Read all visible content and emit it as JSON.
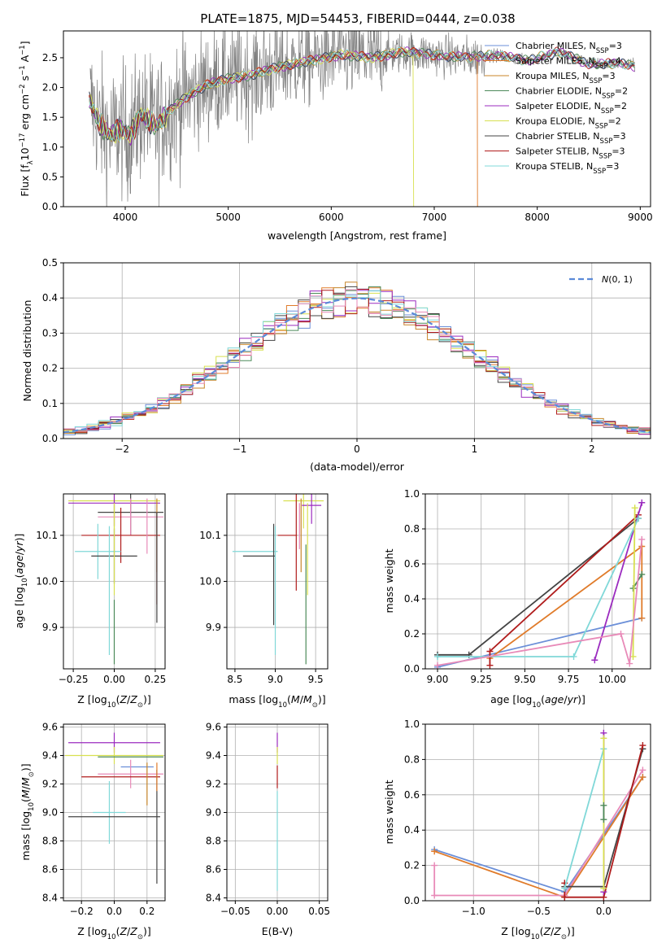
{
  "title": "PLATE=1875, MJD=54453, FIBERID=0444, z=0.038",
  "colors": {
    "Chabrier MILES": "#6b8fd8",
    "Salpeter MILES": "#e07b2a",
    "Kroupa MILES": "#c8862a",
    "Chabrier ELODIE": "#4d8a5a",
    "Salpeter ELODIE": "#9b2bbf",
    "Kroupa ELODIE": "#d8e050",
    "Chabrier STELIB": "#444444",
    "Salpeter STELIB": "#b01c1c",
    "Kroupa STELIB": "#80d8d8",
    "extra": "#e88ab8"
  },
  "chart_data": [
    {
      "id": "spectrum",
      "type": "line",
      "xlabel": "wavelength [Angstrom, rest frame]",
      "ylabel": "Flux [f_λ10^-17 erg cm^-2 s^-1 A^-1]",
      "xlim": [
        3400,
        9100
      ],
      "ylim": [
        0,
        2.95
      ],
      "xticks": [
        4000,
        5000,
        6000,
        7000,
        8000,
        9000
      ],
      "yticks": [
        0.0,
        0.5,
        1.0,
        1.5,
        2.0,
        2.5
      ],
      "legend_position": "upper-right",
      "legend": [
        {
          "name": "Chabrier MILES, N_SSP=3",
          "color_key": "Chabrier MILES"
        },
        {
          "name": "Salpeter MILES, N_SSP=4",
          "color_key": "Salpeter MILES"
        },
        {
          "name": "Kroupa MILES, N_SSP=3",
          "color_key": "Kroupa MILES"
        },
        {
          "name": "Chabrier ELODIE, N_SSP=2",
          "color_key": "Chabrier ELODIE"
        },
        {
          "name": "Salpeter ELODIE, N_SSP=2",
          "color_key": "Salpeter ELODIE"
        },
        {
          "name": "Kroupa ELODIE, N_SSP=2",
          "color_key": "Kroupa ELODIE"
        },
        {
          "name": "Chabrier STELIB, N_SSP=3",
          "color_key": "Chabrier STELIB"
        },
        {
          "name": "Salpeter STELIB, N_SSP=3",
          "color_key": "Salpeter STELIB"
        },
        {
          "name": "Kroupa STELIB, N_SSP=3",
          "color_key": "Kroupa STELIB"
        }
      ],
      "model_points": [
        [
          3650,
          1.8
        ],
        [
          3750,
          1.4
        ],
        [
          3850,
          1.2
        ],
        [
          3950,
          1.3
        ],
        [
          4050,
          1.2
        ],
        [
          4150,
          1.55
        ],
        [
          4300,
          1.35
        ],
        [
          4450,
          1.65
        ],
        [
          4600,
          1.85
        ],
        [
          4800,
          2.05
        ],
        [
          5000,
          2.15
        ],
        [
          5200,
          2.2
        ],
        [
          5500,
          2.35
        ],
        [
          5800,
          2.45
        ],
        [
          6100,
          2.55
        ],
        [
          6400,
          2.5
        ],
        [
          6700,
          2.6
        ],
        [
          7000,
          2.55
        ],
        [
          7300,
          2.5
        ],
        [
          7600,
          2.55
        ],
        [
          7900,
          2.45
        ],
        [
          8200,
          2.6
        ],
        [
          8500,
          2.4
        ],
        [
          8800,
          2.4
        ],
        [
          9000,
          2.35
        ]
      ]
    },
    {
      "id": "histogram",
      "type": "bar",
      "xlabel": "(data-model)/error",
      "ylabel": "Normed distribution",
      "xlim": [
        -2.5,
        2.5
      ],
      "ylim": [
        0,
        0.5
      ],
      "xticks": [
        -2,
        -1,
        0,
        1,
        2
      ],
      "yticks": [
        0.0,
        0.1,
        0.2,
        0.3,
        0.4,
        0.5
      ],
      "legend_position": "upper-right",
      "reference_label": "N(0,1)",
      "bin_width": 0.1
    },
    {
      "id": "age-vs-Z",
      "type": "scatter",
      "xlabel": "Z [log10(Z/Z⊙)]",
      "ylabel": "age [log10(age/yr)]",
      "xlim": [
        -0.31,
        0.31
      ],
      "ylim": [
        9.81,
        10.19
      ],
      "xticks": [
        -0.25,
        0.0,
        0.25
      ],
      "yticks": [
        9.9,
        10.0,
        10.1
      ],
      "points": [
        {
          "key": "Kroupa ELODIE",
          "x": 0.0,
          "y": 10.175,
          "xerr": 0.28,
          "yerr": 0.06
        },
        {
          "key": "Salpeter ELODIE",
          "x": 0.0,
          "y": 10.17,
          "xerr": 0.28,
          "yerr": 0.05
        },
        {
          "key": "Chabrier STELIB",
          "x": 0.1,
          "y": 10.15,
          "xerr": 0.2,
          "yerr": 0.05
        },
        {
          "key": "extra",
          "x": 0.1,
          "y": 10.14,
          "xerr": 0.2,
          "yerr": 0.04
        },
        {
          "key": "Salpeter STELIB",
          "x": 0.04,
          "y": 10.1,
          "xerr": 0.24,
          "yerr": 0.06
        },
        {
          "key": "Kroupa STELIB",
          "x": -0.1,
          "y": 10.065,
          "xerr": 0.14,
          "yerr": 0.06
        },
        {
          "key": "Chabrier STELIB",
          "x": 0.0,
          "y": 10.055,
          "xerr": 0.14,
          "yerr": 0.06
        },
        {
          "key": "Chabrier ELODIE",
          "x": 0.0,
          "y": 9.89,
          "xerr": 0.0,
          "yerr": 0.07
        },
        {
          "key": "Kroupa STELIB",
          "x": -0.03,
          "y": 9.98,
          "xerr": 0.0,
          "yerr": 0.14
        },
        {
          "key": "Kroupa MILES",
          "x": 0.26,
          "y": 10.1,
          "xerr": 0.0,
          "yerr": 0.08
        },
        {
          "key": "Salpeter STELIB",
          "x": 0.26,
          "y": 10.05,
          "xerr": 0.0,
          "yerr": 0.1
        },
        {
          "key": "Chabrier STELIB",
          "x": 0.26,
          "y": 10.03,
          "xerr": 0.0,
          "yerr": 0.12
        },
        {
          "key": "extra",
          "x": 0.2,
          "y": 10.12,
          "xerr": 0.0,
          "yerr": 0.06
        },
        {
          "key": "Kroupa ELODIE",
          "x": 0.0,
          "y": 10.07,
          "xerr": 0.0,
          "yerr": 0.1
        }
      ]
    },
    {
      "id": "age-vs-mass",
      "type": "scatter",
      "xlabel": "mass [log10(M/M⊙)]",
      "ylabel": "",
      "xlim": [
        8.4,
        9.65
      ],
      "ylim": [
        9.81,
        10.19
      ],
      "xticks": [
        8.5,
        9.0,
        9.5
      ],
      "yticks": [
        9.9,
        10.0,
        10.1
      ],
      "points": [
        {
          "key": "Kroupa ELODIE",
          "x": 9.35,
          "y": 10.175,
          "xerr": 0.25,
          "yerr": 0.06
        },
        {
          "key": "Salpeter ELODIE",
          "x": 9.45,
          "y": 10.165,
          "xerr": 0.12,
          "yerr": 0.04
        },
        {
          "key": "Salpeter STELIB",
          "x": 9.26,
          "y": 10.1,
          "xerr": 0.0,
          "yerr": 0.12
        },
        {
          "key": "Salpeter STELIB",
          "x": 9.15,
          "y": 10.1,
          "xerr": 0.12,
          "yerr": 0.0
        },
        {
          "key": "Kroupa STELIB",
          "x": 8.75,
          "y": 10.065,
          "xerr": 0.28,
          "yerr": 0.0
        },
        {
          "key": "Chabrier STELIB",
          "x": 8.8,
          "y": 10.055,
          "xerr": 0.2,
          "yerr": 0.0
        },
        {
          "key": "Chabrier STELIB",
          "x": 8.98,
          "y": 10.015,
          "xerr": 0.0,
          "yerr": 0.11
        },
        {
          "key": "Kroupa STELIB",
          "x": 9.0,
          "y": 9.98,
          "xerr": 0.0,
          "yerr": 0.14
        },
        {
          "key": "Kroupa ELODIE",
          "x": 9.4,
          "y": 10.07,
          "xerr": 0.0,
          "yerr": 0.1
        },
        {
          "key": "Chabrier ELODIE",
          "x": 9.38,
          "y": 9.95,
          "xerr": 0.0,
          "yerr": 0.13
        },
        {
          "key": "Kroupa MILES",
          "x": 9.32,
          "y": 10.1,
          "xerr": 0.0,
          "yerr": 0.08
        },
        {
          "key": "extra",
          "x": 9.3,
          "y": 10.12,
          "xerr": 0.0,
          "yerr": 0.05
        }
      ]
    },
    {
      "id": "massweight-vs-age",
      "type": "line",
      "xlabel": "age [log10(age/yr)]",
      "ylabel": "mass weight",
      "xlim": [
        8.93,
        10.22
      ],
      "ylim": [
        0.0,
        1.0
      ],
      "xticks": [
        9.0,
        9.25,
        9.5,
        9.75,
        10.0
      ],
      "yticks": [
        0.0,
        0.2,
        0.4,
        0.6,
        0.8,
        1.0
      ],
      "series": [
        {
          "key": "Chabrier MILES",
          "x": [
            9.0,
            10.17
          ],
          "y": [
            0.01,
            0.29
          ]
        },
        {
          "key": "Salpeter MILES",
          "x": [
            9.3,
            10.17,
            10.17
          ],
          "y": [
            0.06,
            0.7,
            0.29
          ]
        },
        {
          "key": "Chabrier STELIB",
          "x": [
            9.0,
            9.18,
            10.15
          ],
          "y": [
            0.08,
            0.08,
            0.86
          ]
        },
        {
          "key": "Salpeter STELIB",
          "x": [
            9.3,
            9.3,
            10.15
          ],
          "y": [
            0.02,
            0.1,
            0.88
          ]
        },
        {
          "key": "Salpeter ELODIE",
          "x": [
            9.9,
            10.17
          ],
          "y": [
            0.05,
            0.95
          ]
        },
        {
          "key": "Kroupa STELIB",
          "x": [
            9.0,
            9.78,
            10.15
          ],
          "y": [
            0.07,
            0.07,
            0.86
          ]
        },
        {
          "key": "Chabrier ELODIE",
          "x": [
            10.12,
            10.17
          ],
          "y": [
            0.46,
            0.54
          ]
        },
        {
          "key": "Kroupa ELODIE",
          "x": [
            10.12,
            10.13
          ],
          "y": [
            0.07,
            0.92
          ]
        },
        {
          "key": "extra",
          "x": [
            9.0,
            10.05,
            10.1,
            10.17
          ],
          "y": [
            0.02,
            0.2,
            0.03,
            0.74
          ]
        }
      ]
    },
    {
      "id": "mass-vs-Z",
      "type": "scatter",
      "xlabel": "Z [log10(Z/Z⊙)]",
      "ylabel": "mass [log10(M/M⊙)]",
      "xlim": [
        -0.31,
        0.31
      ],
      "ylim": [
        8.38,
        9.62
      ],
      "xticks": [
        -0.2,
        0.0,
        0.2
      ],
      "yticks": [
        8.4,
        8.6,
        8.8,
        9.0,
        9.2,
        9.4,
        9.6
      ],
      "points": [
        {
          "key": "Salpeter ELODIE",
          "x": 0.0,
          "y": 9.49,
          "xerr": 0.28,
          "yerr": 0.07
        },
        {
          "key": "Kroupa ELODIE",
          "x": 0.0,
          "y": 9.4,
          "xerr": 0.3,
          "yerr": 0.06
        },
        {
          "key": "Chabrier ELODIE",
          "x": 0.1,
          "y": 9.39,
          "xerr": 0.2,
          "yerr": 0.0
        },
        {
          "key": "Chabrier MILES",
          "x": 0.14,
          "y": 9.32,
          "xerr": 0.1,
          "yerr": 0.0
        },
        {
          "key": "extra",
          "x": 0.1,
          "y": 9.27,
          "xerr": 0.2,
          "yerr": 0.1
        },
        {
          "key": "Salpeter STELIB",
          "x": 0.04,
          "y": 9.25,
          "xerr": 0.24,
          "yerr": 0.0
        },
        {
          "key": "Kroupa STELIB",
          "x": -0.03,
          "y": 9.0,
          "xerr": 0.1,
          "yerr": 0.22
        },
        {
          "key": "Chabrier STELIB",
          "x": 0.0,
          "y": 8.97,
          "xerr": 0.28,
          "yerr": 0.0
        },
        {
          "key": "Chabrier STELIB",
          "x": 0.26,
          "y": 8.9,
          "xerr": 0.0,
          "yerr": 0.4
        },
        {
          "key": "Salpeter MILES",
          "x": 0.26,
          "y": 9.25,
          "xerr": 0.0,
          "yerr": 0.1
        },
        {
          "key": "Kroupa MILES",
          "x": 0.2,
          "y": 9.2,
          "xerr": 0.0,
          "yerr": 0.15
        }
      ]
    },
    {
      "id": "mass-vs-EBV",
      "type": "scatter",
      "xlabel": "E(B-V)",
      "ylabel": "",
      "xlim": [
        -0.06,
        0.06
      ],
      "ylim": [
        8.38,
        9.62
      ],
      "xticks": [
        -0.05,
        0.0,
        0.05
      ],
      "yticks": [
        8.4,
        8.6,
        8.8,
        9.0,
        9.2,
        9.4,
        9.6
      ],
      "points": [
        {
          "key": "Salpeter ELODIE",
          "x": 0.0,
          "y": 9.49,
          "xerr": 0.0,
          "yerr": 0.07
        },
        {
          "key": "Kroupa ELODIE",
          "x": 0.0,
          "y": 9.4,
          "xerr": 0.0,
          "yerr": 0.06
        },
        {
          "key": "Salpeter STELIB",
          "x": 0.0,
          "y": 9.25,
          "xerr": 0.0,
          "yerr": 0.08
        },
        {
          "key": "Kroupa STELIB",
          "x": 0.0,
          "y": 8.8,
          "xerr": 0.0,
          "yerr": 0.35
        }
      ]
    },
    {
      "id": "massweight-vs-Z",
      "type": "line",
      "xlabel": "Z [log10(Z/Z⊙)]",
      "ylabel": "mass weight",
      "xlim": [
        -1.37,
        0.36
      ],
      "ylim": [
        0.0,
        1.0
      ],
      "xticks": [
        -1.0,
        -0.5,
        0.0
      ],
      "yticks": [
        0.0,
        0.2,
        0.4,
        0.6,
        0.8,
        1.0
      ],
      "series": [
        {
          "key": "Chabrier MILES",
          "x": [
            -1.3,
            -0.3,
            0.3
          ],
          "y": [
            0.29,
            0.05,
            0.7
          ]
        },
        {
          "key": "Salpeter MILES",
          "x": [
            -1.3,
            -0.3,
            0.3
          ],
          "y": [
            0.28,
            0.02,
            0.7
          ]
        },
        {
          "key": "extra",
          "x": [
            -1.3,
            -1.3,
            -0.3,
            0.3
          ],
          "y": [
            0.2,
            0.03,
            0.03,
            0.74
          ]
        },
        {
          "key": "Chabrier STELIB",
          "x": [
            -0.3,
            0.0,
            0.3
          ],
          "y": [
            0.08,
            0.08,
            0.86
          ]
        },
        {
          "key": "Salpeter STELIB",
          "x": [
            -0.3,
            -0.3,
            0.0,
            0.3
          ],
          "y": [
            0.1,
            0.02,
            0.02,
            0.88
          ]
        },
        {
          "key": "Kroupa STELIB",
          "x": [
            -0.3,
            0.0
          ],
          "y": [
            0.07,
            0.86
          ]
        },
        {
          "key": "Salpeter ELODIE",
          "x": [
            0.0,
            0.0
          ],
          "y": [
            0.05,
            0.95
          ]
        },
        {
          "key": "Kroupa ELODIE",
          "x": [
            0.0,
            0.0
          ],
          "y": [
            0.07,
            0.92
          ]
        },
        {
          "key": "Chabrier ELODIE",
          "x": [
            0.0,
            0.0
          ],
          "y": [
            0.46,
            0.54
          ]
        }
      ]
    }
  ]
}
